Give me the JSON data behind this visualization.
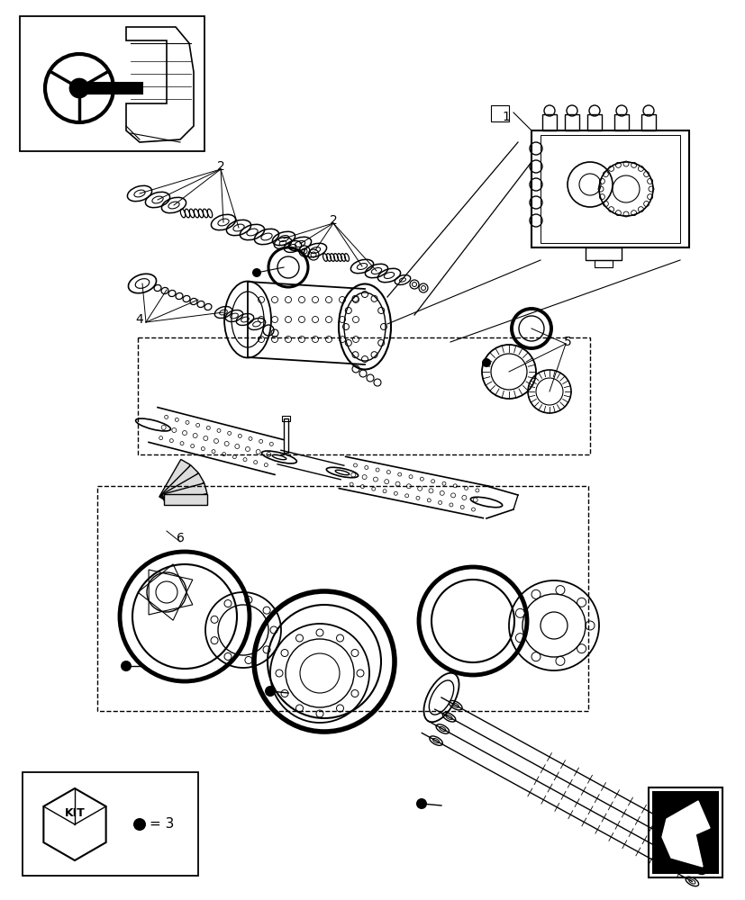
{
  "bg_color": "#ffffff",
  "line_color": "#000000",
  "fig_width": 8.28,
  "fig_height": 10.0,
  "dpi": 100
}
